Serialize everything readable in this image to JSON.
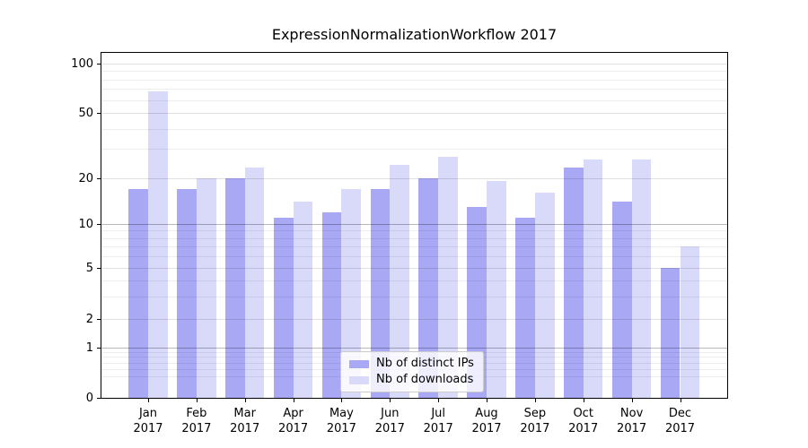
{
  "chart_data": {
    "type": "bar",
    "title": "ExpressionNormalizationWorkflow 2017",
    "categories": [
      "Jan",
      "Feb",
      "Mar",
      "Apr",
      "May",
      "Jun",
      "Jul",
      "Aug",
      "Sep",
      "Oct",
      "Nov",
      "Dec"
    ],
    "year_label": "2017",
    "series": [
      {
        "name": "Nb of distinct IPs",
        "color": "#a8a8f4",
        "values": [
          17,
          17,
          20,
          11,
          12,
          17,
          20,
          13,
          11,
          23,
          14,
          5
        ]
      },
      {
        "name": "Nb of downloads",
        "color": "#d9d9fa",
        "values": [
          68,
          20,
          23,
          14,
          17,
          24,
          27,
          19,
          16,
          26,
          26,
          7
        ]
      }
    ],
    "xlabel": "",
    "ylabel": "",
    "yscale": "symlog",
    "yticks": [
      100,
      50,
      20,
      10,
      5,
      2,
      1,
      0
    ],
    "ylim": [
      0,
      115
    ],
    "grid": true,
    "legend_position": "lower center"
  }
}
